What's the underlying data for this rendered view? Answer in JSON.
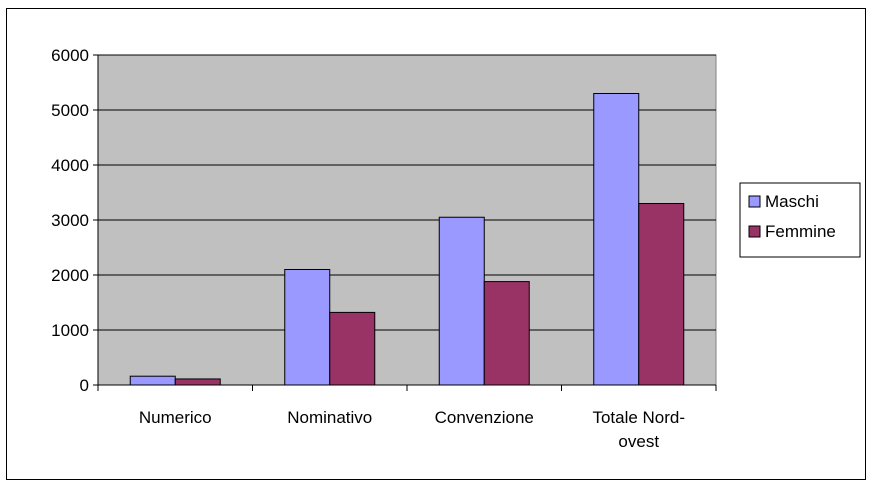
{
  "chart_data": {
    "type": "bar",
    "categories": [
      [
        "Numerico"
      ],
      [
        "Nominativo"
      ],
      [
        "Convenzione"
      ],
      [
        "Totale Nord-",
        "ovest"
      ]
    ],
    "series": [
      {
        "name": "Maschi",
        "values": [
          160,
          2100,
          3050,
          5300
        ],
        "color": "#9999ff"
      },
      {
        "name": "Femmine",
        "values": [
          110,
          1320,
          1880,
          3300
        ],
        "color": "#993366"
      }
    ],
    "yticks": [
      0,
      1000,
      2000,
      3000,
      4000,
      5000,
      6000
    ],
    "ylim": [
      0,
      6000
    ],
    "grid": true,
    "plot_background": "#c0c0c0",
    "legend_position": "right"
  }
}
